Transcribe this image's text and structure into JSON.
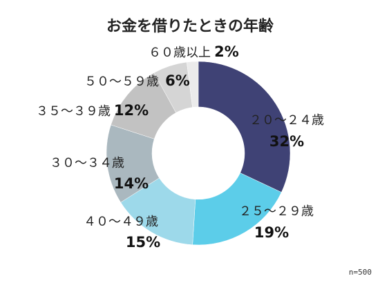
{
  "chart_data": {
    "type": "pie",
    "title": "お金を借りたときの年齢",
    "note": "n=500",
    "unit": "%",
    "categories": [
      "２０～２４歳",
      "２５～２９歳",
      "４０～４９歳",
      "３０～３４歳",
      "３５～３９歳",
      "５０～５９歳",
      "６０歳以上"
    ],
    "values": [
      32,
      19,
      15,
      14,
      12,
      6,
      2
    ],
    "value_labels": [
      "32%",
      "19%",
      "15%",
      "14%",
      "12%",
      "6%",
      "2%"
    ],
    "colors": [
      "#3f4275",
      "#5ccde9",
      "#9dd9ea",
      "#aab8bf",
      "#c2c2c2",
      "#d5d5d5",
      "#ebebeb"
    ],
    "donut": true,
    "start_angle": "12 o'clock, clockwise"
  }
}
